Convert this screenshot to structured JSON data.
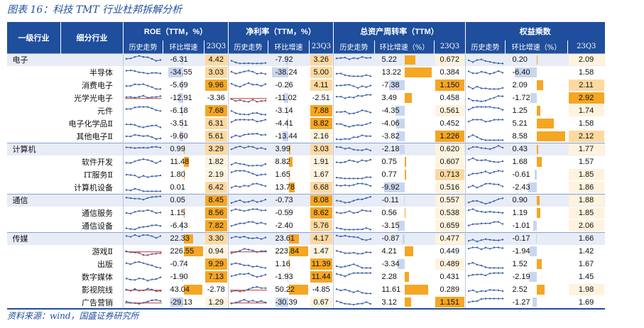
{
  "title": "图表 16：科技 TMT 行业杜邦拆解分析",
  "source": "资料来源：wind，国盛证券研究所",
  "headers": {
    "col1": "一级行业",
    "col2": "细分行业",
    "groups": [
      "ROE（TTM，%）",
      "净利率（TTM，%）",
      "总资产周转率（TTM）",
      "权益乘数"
    ],
    "sub_history": "历史走势",
    "sub_change": "环比增速",
    "sub_change_pct": "环比增速（%）",
    "sub_quarter": "23Q3"
  },
  "colors": {
    "header": "#1f4e9c",
    "pos_bar": "#f5a623",
    "neg_bar": "#c9d6ef",
    "val_high": "#f5a623",
    "val_mid": "#fcd9a0",
    "val_low": "#fff3de",
    "spark_blue": "#3b5fa8",
    "spark_red": "#c0392b"
  },
  "rows": [
    {
      "l1": "电子",
      "l2": "",
      "roe_chg": "-6.31",
      "roe": "4.42",
      "npm_chg": "-7.92",
      "npm": "3.26",
      "tat_chg": "5.22",
      "tat": "0.672",
      "em_chg": "0.20",
      "em": "2.09",
      "seed": 1
    },
    {
      "l1": "",
      "l2": "半导体",
      "roe_chg": "-34.55",
      "roe": "3.03",
      "npm_chg": "-38.24",
      "npm": "5.00",
      "tat_chg": "13.22",
      "tat": "0.384",
      "em_chg": "-6.40",
      "em": "1.58",
      "seed": 2
    },
    {
      "l1": "",
      "l2": "消费电子",
      "roe_chg": "-5.69",
      "roe": "9.96",
      "npm_chg": "-0.26",
      "npm": "4.11",
      "tat_chg": "-7.38",
      "tat": "1.150",
      "em_chg": "2.09",
      "em": "2.11",
      "seed": 3
    },
    {
      "l1": "",
      "l2": "光学光电子",
      "roe_chg": "-12.91",
      "roe": "-3.36",
      "npm_chg": "-11.02",
      "npm": "-2.51",
      "tat_chg": "3.49",
      "tat": "0.458",
      "em_chg": "-1.72",
      "em": "2.92",
      "seed": 4,
      "red": true
    },
    {
      "l1": "",
      "l2": "元件",
      "roe_chg": "-6.18",
      "roe": "7.68",
      "npm_chg": "-3.14",
      "npm": "7.88",
      "tat_chg": "-4.35",
      "tat": "0.561",
      "em_chg": "1.25",
      "em": "1.74",
      "seed": 5
    },
    {
      "l1": "",
      "l2": "电子化学品Ⅱ",
      "roe_chg": "-3.51",
      "roe": "6.31",
      "npm_chg": "-4.41",
      "npm": "8.82",
      "tat_chg": "-4.06",
      "tat": "0.452",
      "em_chg": "5.21",
      "em": "1.58",
      "seed": 6
    },
    {
      "l1": "",
      "l2": "其他电子Ⅱ",
      "roe_chg": "-9.60",
      "roe": "5.61",
      "npm_chg": "-13.44",
      "npm": "2.16",
      "tat_chg": "-3.82",
      "tat": "1.226",
      "em_chg": "8.58",
      "em": "2.12",
      "seed": 7
    },
    {
      "l1": "计算机",
      "l2": "",
      "roe_chg": "0.99",
      "roe": "3.29",
      "npm_chg": "3.99",
      "npm": "3.03",
      "tat_chg": "-2.18",
      "tat": "0.620",
      "em_chg": "0.43",
      "em": "1.77",
      "seed": 8
    },
    {
      "l1": "",
      "l2": "软件开发",
      "roe_chg": "11.48",
      "roe": "1.82",
      "npm_chg": "8.82",
      "npm": "1.91",
      "tat_chg": "0.75",
      "tat": "0.607",
      "em_chg": "1.68",
      "em": "1.57",
      "seed": 9
    },
    {
      "l1": "",
      "l2": "IT服务Ⅱ",
      "roe_chg": "1.80",
      "roe": "2.19",
      "npm_chg": "1.65",
      "npm": "1.67",
      "tat_chg": "0.77",
      "tat": "0.713",
      "em_chg": "-0.61",
      "em": "1.85",
      "seed": 10
    },
    {
      "l1": "",
      "l2": "计算机设备",
      "roe_chg": "0.01",
      "roe": "6.42",
      "npm_chg": "13.78",
      "npm": "6.68",
      "tat_chg": "-9.92",
      "tat": "0.516",
      "em_chg": "-2.43",
      "em": "1.86",
      "seed": 11
    },
    {
      "l1": "通信",
      "l2": "",
      "roe_chg": "0.05",
      "roe": "8.45",
      "npm_chg": "-0.73",
      "npm": "8.08",
      "tat_chg": "-0.11",
      "tat": "0.557",
      "em_chg": "0.90",
      "em": "1.88",
      "seed": 12
    },
    {
      "l1": "",
      "l2": "通信服务",
      "roe_chg": "1.15",
      "roe": "8.56",
      "npm_chg": "-0.59",
      "npm": "8.62",
      "tat_chg": "0.56",
      "tat": "0.538",
      "em_chg": "1.19",
      "em": "1.85",
      "seed": 13
    },
    {
      "l1": "",
      "l2": "通信设备",
      "roe_chg": "-6.43",
      "roe": "7.82",
      "npm_chg": "-2.40",
      "npm": "5.76",
      "tat_chg": "-3.15",
      "tat": "0.659",
      "em_chg": "-1.01",
      "em": "2.06",
      "seed": 14
    },
    {
      "l1": "传媒",
      "l2": "",
      "roe_chg": "22.33",
      "roe": "3.30",
      "npm_chg": "23.61",
      "npm": "4.17",
      "tat_chg": "-0.87",
      "tat": "0.477",
      "em_chg": "-0.17",
      "em": "1.66",
      "seed": 15
    },
    {
      "l1": "",
      "l2": "游戏Ⅱ",
      "roe_chg": "226.55",
      "roe": "0.94",
      "npm_chg": "223.84",
      "npm": "1.47",
      "tat_chg": "4.21",
      "tat": "0.449",
      "em_chg": "-1.94",
      "em": "1.42",
      "seed": 16,
      "red": true
    },
    {
      "l1": "",
      "l2": "出版",
      "roe_chg": "-0.74",
      "roe": "9.29",
      "npm_chg": "1.16",
      "npm": "11.39",
      "tat_chg": "-3.34",
      "tat": "0.489",
      "em_chg": "1.52",
      "em": "1.67",
      "seed": 17
    },
    {
      "l1": "",
      "l2": "数字媒体",
      "roe_chg": "-1.90",
      "roe": "7.13",
      "npm_chg": "-1.93",
      "npm": "11.44",
      "tat_chg": "2.28",
      "tat": "0.431",
      "em_chg": "-2.19",
      "em": "1.45",
      "seed": 18
    },
    {
      "l1": "",
      "l2": "影视院线",
      "roe_chg": "43.04",
      "roe": "-2.78",
      "npm_chg": "50.22",
      "npm": "-4.85",
      "tat_chg": "11.61",
      "tat": "0.289",
      "em_chg": "2.52",
      "em": "1.98",
      "seed": 19,
      "red": true
    },
    {
      "l1": "",
      "l2": "广告营销",
      "roe_chg": "-29.13",
      "roe": "1.29",
      "npm_chg": "-30.39",
      "npm": "0.67",
      "tat_chg": "3.12",
      "tat": "1.151",
      "em_chg": "-1.27",
      "em": "1.69",
      "seed": 20,
      "red": true
    }
  ]
}
